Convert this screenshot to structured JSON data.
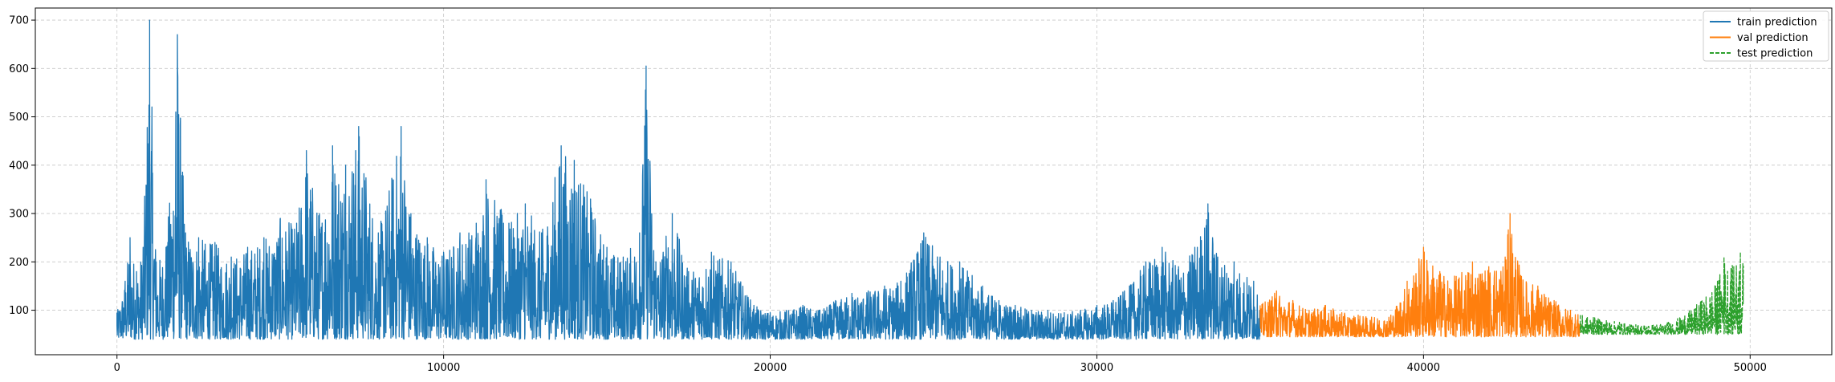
{
  "chart_data": {
    "type": "line",
    "title": "",
    "xlabel": "",
    "ylabel": "",
    "xlim": [
      -2500,
      52500
    ],
    "ylim": [
      8,
      725
    ],
    "x_ticks": [
      0,
      10000,
      20000,
      30000,
      40000,
      50000
    ],
    "y_ticks": [
      100,
      200,
      300,
      400,
      500,
      600,
      700
    ],
    "grid": true,
    "legend_position": "top-right",
    "series": [
      {
        "name": "train prediction",
        "color": "#1f77b4",
        "style": "solid",
        "x_range": [
          0,
          35000
        ],
        "points": [
          [
            0,
            95
          ],
          [
            250,
            160
          ],
          [
            400,
            250
          ],
          [
            600,
            180
          ],
          [
            800,
            230
          ],
          [
            1000,
            700
          ],
          [
            1200,
            200
          ],
          [
            1500,
            230
          ],
          [
            1800,
            510
          ],
          [
            1850,
            670
          ],
          [
            2100,
            260
          ],
          [
            2500,
            250
          ],
          [
            3000,
            240
          ],
          [
            3500,
            210
          ],
          [
            4000,
            230
          ],
          [
            4500,
            250
          ],
          [
            5000,
            290
          ],
          [
            5500,
            280
          ],
          [
            5800,
            430
          ],
          [
            6200,
            300
          ],
          [
            6600,
            440
          ],
          [
            7000,
            400
          ],
          [
            7400,
            480
          ],
          [
            8000,
            260
          ],
          [
            8700,
            480
          ],
          [
            9000,
            300
          ],
          [
            9500,
            250
          ],
          [
            10000,
            220
          ],
          [
            10500,
            260
          ],
          [
            11000,
            280
          ],
          [
            11300,
            370
          ],
          [
            12000,
            280
          ],
          [
            12500,
            320
          ],
          [
            13000,
            260
          ],
          [
            13600,
            440
          ],
          [
            14000,
            410
          ],
          [
            14500,
            330
          ],
          [
            15000,
            230
          ],
          [
            15500,
            210
          ],
          [
            16000,
            260
          ],
          [
            16200,
            605
          ],
          [
            16500,
            200
          ],
          [
            17000,
            300
          ],
          [
            17500,
            180
          ],
          [
            18200,
            220
          ],
          [
            18800,
            200
          ],
          [
            19500,
            110
          ],
          [
            20000,
            95
          ],
          [
            20500,
            100
          ],
          [
            21000,
            110
          ],
          [
            21500,
            100
          ],
          [
            22000,
            120
          ],
          [
            22500,
            135
          ],
          [
            23000,
            140
          ],
          [
            23500,
            150
          ],
          [
            24000,
            160
          ],
          [
            24700,
            260
          ],
          [
            25200,
            210
          ],
          [
            25800,
            200
          ],
          [
            26500,
            150
          ],
          [
            27000,
            120
          ],
          [
            27500,
            110
          ],
          [
            28000,
            100
          ],
          [
            28500,
            100
          ],
          [
            29000,
            95
          ],
          [
            29500,
            100
          ],
          [
            30000,
            110
          ],
          [
            30500,
            120
          ],
          [
            31000,
            150
          ],
          [
            31500,
            200
          ],
          [
            32000,
            230
          ],
          [
            32500,
            190
          ],
          [
            33000,
            230
          ],
          [
            33400,
            320
          ],
          [
            33700,
            210
          ],
          [
            34200,
            200
          ],
          [
            34800,
            160
          ],
          [
            35000,
            110
          ]
        ]
      },
      {
        "name": "val prediction",
        "color": "#ff7f0e",
        "style": "solid",
        "x_range": [
          35000,
          44800
        ],
        "points": [
          [
            35000,
            110
          ],
          [
            35500,
            140
          ],
          [
            36000,
            120
          ],
          [
            36500,
            100
          ],
          [
            37000,
            110
          ],
          [
            37500,
            95
          ],
          [
            38000,
            90
          ],
          [
            38500,
            85
          ],
          [
            39000,
            90
          ],
          [
            39500,
            160
          ],
          [
            40000,
            230
          ],
          [
            40500,
            180
          ],
          [
            41000,
            170
          ],
          [
            41500,
            200
          ],
          [
            42000,
            190
          ],
          [
            42500,
            210
          ],
          [
            42650,
            300
          ],
          [
            43000,
            170
          ],
          [
            43500,
            150
          ],
          [
            44000,
            120
          ],
          [
            44500,
            100
          ],
          [
            44800,
            90
          ]
        ]
      },
      {
        "name": "test prediction",
        "color": "#2ca02c",
        "style": "dashed",
        "x_range": [
          44800,
          49800
        ],
        "points": [
          [
            44800,
            90
          ],
          [
            45200,
            85
          ],
          [
            45600,
            80
          ],
          [
            46000,
            75
          ],
          [
            46500,
            70
          ],
          [
            47000,
            70
          ],
          [
            47500,
            75
          ],
          [
            48000,
            90
          ],
          [
            48500,
            120
          ],
          [
            49000,
            160
          ],
          [
            49200,
            210
          ],
          [
            49500,
            190
          ],
          [
            49700,
            220
          ],
          [
            49800,
            200
          ]
        ]
      }
    ]
  }
}
